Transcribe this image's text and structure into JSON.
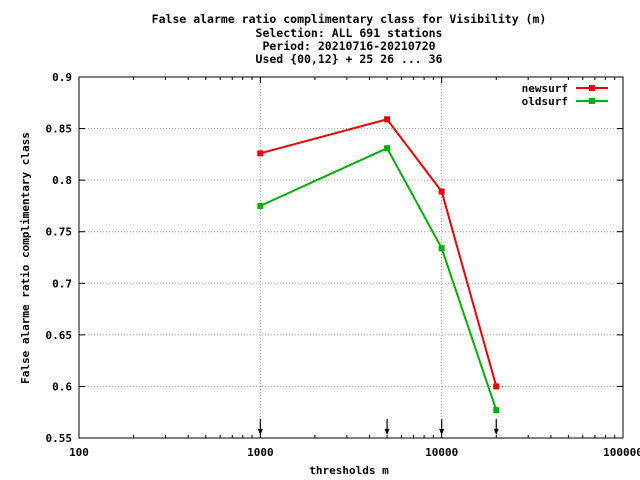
{
  "title_lines": [
    "False alarme ratio complimentary class  for Visibility (m)",
    "Selection: ALL    691 stations",
    "Period: 20210716-20210720",
    "Used {00,12} + 25 26 ... 36"
  ],
  "chart_data": {
    "type": "line",
    "xlabel": "thresholds m",
    "ylabel": "False alarme ratio complimentary class",
    "x_scale": "log",
    "xlim": [
      100,
      100000
    ],
    "ylim": [
      0.55,
      0.9
    ],
    "x_tick_labels": [
      "100",
      "1000",
      "10000",
      "100000"
    ],
    "y_tick_labels": [
      "0.55",
      "0.6",
      "0.65",
      "0.7",
      "0.75",
      "0.8",
      "0.85",
      "0.9"
    ],
    "grid": true,
    "legend_position": "top-right",
    "series": [
      {
        "name": "newsurf",
        "color": "#ee0000",
        "x": [
          1000,
          5000,
          10000,
          20000
        ],
        "y": [
          0.826,
          0.859,
          0.789,
          0.6
        ]
      },
      {
        "name": "oldsurf",
        "color": "#00b000",
        "x": [
          1000,
          5000,
          10000,
          20000
        ],
        "y": [
          0.775,
          0.831,
          0.734,
          0.577
        ]
      }
    ],
    "threshold_markers": [
      1000,
      5000,
      10000,
      20000
    ]
  }
}
